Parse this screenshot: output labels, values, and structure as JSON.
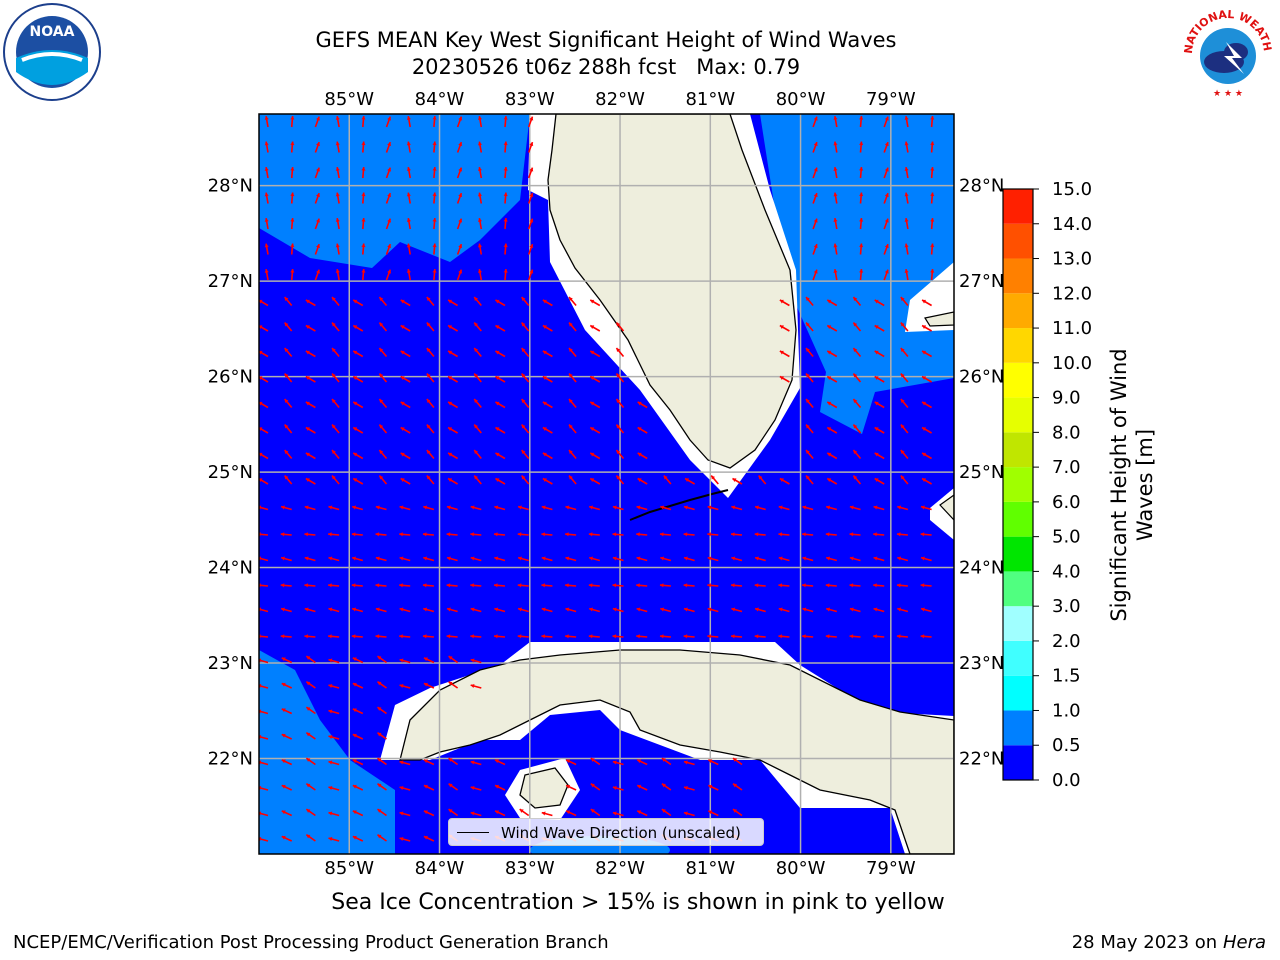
{
  "title": {
    "line1": "GEFS MEAN Key West Significant Height of Wind Waves",
    "line2": "20230526 t06z 288h fcst   Max: 0.79"
  },
  "map": {
    "lon_labels": [
      "85°W",
      "84°W",
      "83°W",
      "82°W",
      "81°W",
      "80°W",
      "79°W"
    ],
    "lat_labels": [
      "28°N",
      "27°N",
      "26°N",
      "25°N",
      "24°N",
      "23°N",
      "22°N"
    ],
    "extent": {
      "lon_min": -86.0,
      "lon_max": -78.3,
      "lat_min": 21.0,
      "lat_max": 28.75
    },
    "gridlines": true,
    "colors": {
      "ocean_low": "#0000ff",
      "ocean_mid": "#0080ff",
      "land": "#eeeedd",
      "arrow": "#ff0000",
      "grid": "#b0b0b0"
    },
    "legend": {
      "label": "Wind Wave Direction (unscaled)",
      "placement": "bottom-center"
    }
  },
  "colorbar": {
    "label": "Significant Height of Wind\nWaves [m]",
    "tick_labels": [
      "0.0",
      "0.5",
      "1.0",
      "1.5",
      "2.0",
      "3.0",
      "4.0",
      "5.0",
      "6.0",
      "7.0",
      "8.0",
      "9.0",
      "10.0",
      "11.0",
      "12.0",
      "13.0",
      "14.0",
      "15.0"
    ],
    "colors": [
      "#0000ff",
      "#0080ff",
      "#00ffff",
      "#40ffff",
      "#80ffff",
      "#a0ffff",
      "#50ff80",
      "#00e600",
      "#60ff00",
      "#a0ff00",
      "#c0e600",
      "#e6ff00",
      "#ffff00",
      "#ffd700",
      "#ffaa00",
      "#ff8000",
      "#ff5000",
      "#ff2000",
      "#ff0000"
    ]
  },
  "chart_data": {
    "type": "heatmap",
    "title": "GEFS MEAN Key West Significant Height of Wind Waves",
    "subtitle": "20230526 t06z 288h fcst   Max: 0.79",
    "colorbar_label": "Significant Height of Wind Waves [m]",
    "levels": [
      0.0,
      0.5,
      1.0,
      1.5,
      2.0,
      3.0,
      4.0,
      5.0,
      6.0,
      7.0,
      8.0,
      9.0,
      10.0,
      11.0,
      12.0,
      13.0,
      14.0,
      15.0
    ],
    "max_value": 0.79,
    "x_ticks": [
      "85°W",
      "84°W",
      "83°W",
      "82°W",
      "81°W",
      "80°W",
      "79°W"
    ],
    "y_ticks": [
      "28°N",
      "27°N",
      "26°N",
      "25°N",
      "24°N",
      "23°N",
      "22°N"
    ],
    "grid": true
  },
  "note": "Sea Ice Concentration > 15% is shown in pink to yellow",
  "footer": {
    "left": "NCEP/EMC/Verification Post Processing Product Generation Branch",
    "date": "28 May 2023 on",
    "machine": "Hera"
  },
  "logos": {
    "left": {
      "icon": "noaa-logo",
      "text": "NOAA"
    },
    "right": {
      "icon": "nws-logo",
      "text": "NATIONAL WEATHER SERVICE"
    }
  }
}
